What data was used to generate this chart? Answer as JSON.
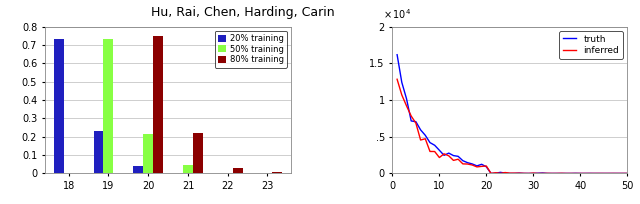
{
  "bar_categories": [
    18,
    19,
    20,
    21,
    22,
    23
  ],
  "bar_20pct": [
    0.73,
    0.23,
    0.04,
    0.003,
    0.0,
    0.0
  ],
  "bar_50pct": [
    0.0,
    0.73,
    0.215,
    0.048,
    0.002,
    0.001
  ],
  "bar_80pct": [
    0.0,
    0.0,
    0.75,
    0.22,
    0.03,
    0.01
  ],
  "bar_color_20": "#1f1fbf",
  "bar_color_50": "#88ff44",
  "bar_color_80": "#8b0000",
  "bar_ylim": [
    0,
    0.8
  ],
  "bar_yticks": [
    0.0,
    0.1,
    0.2,
    0.3,
    0.4,
    0.5,
    0.6,
    0.7,
    0.8
  ],
  "bar_legend": [
    "20% training",
    "50% training",
    "80% training"
  ],
  "line_xlim": [
    0,
    50
  ],
  "line_ylim": [
    0,
    20000
  ],
  "line_xticks": [
    0,
    10,
    20,
    30,
    40,
    50
  ],
  "line_ytick_vals": [
    0,
    5000,
    10000,
    15000,
    20000
  ],
  "line_ytick_labels": [
    "0",
    ".5",
    "1",
    "1.5",
    "2"
  ],
  "line_color_truth": "#0000ff",
  "line_color_inferred": "#ff0000",
  "line_legend": [
    "truth",
    "inferred"
  ],
  "title": "Hu, Rai, Chen, Harding, Carin",
  "title_fontsize": 9,
  "bg_color": "#ffffff"
}
